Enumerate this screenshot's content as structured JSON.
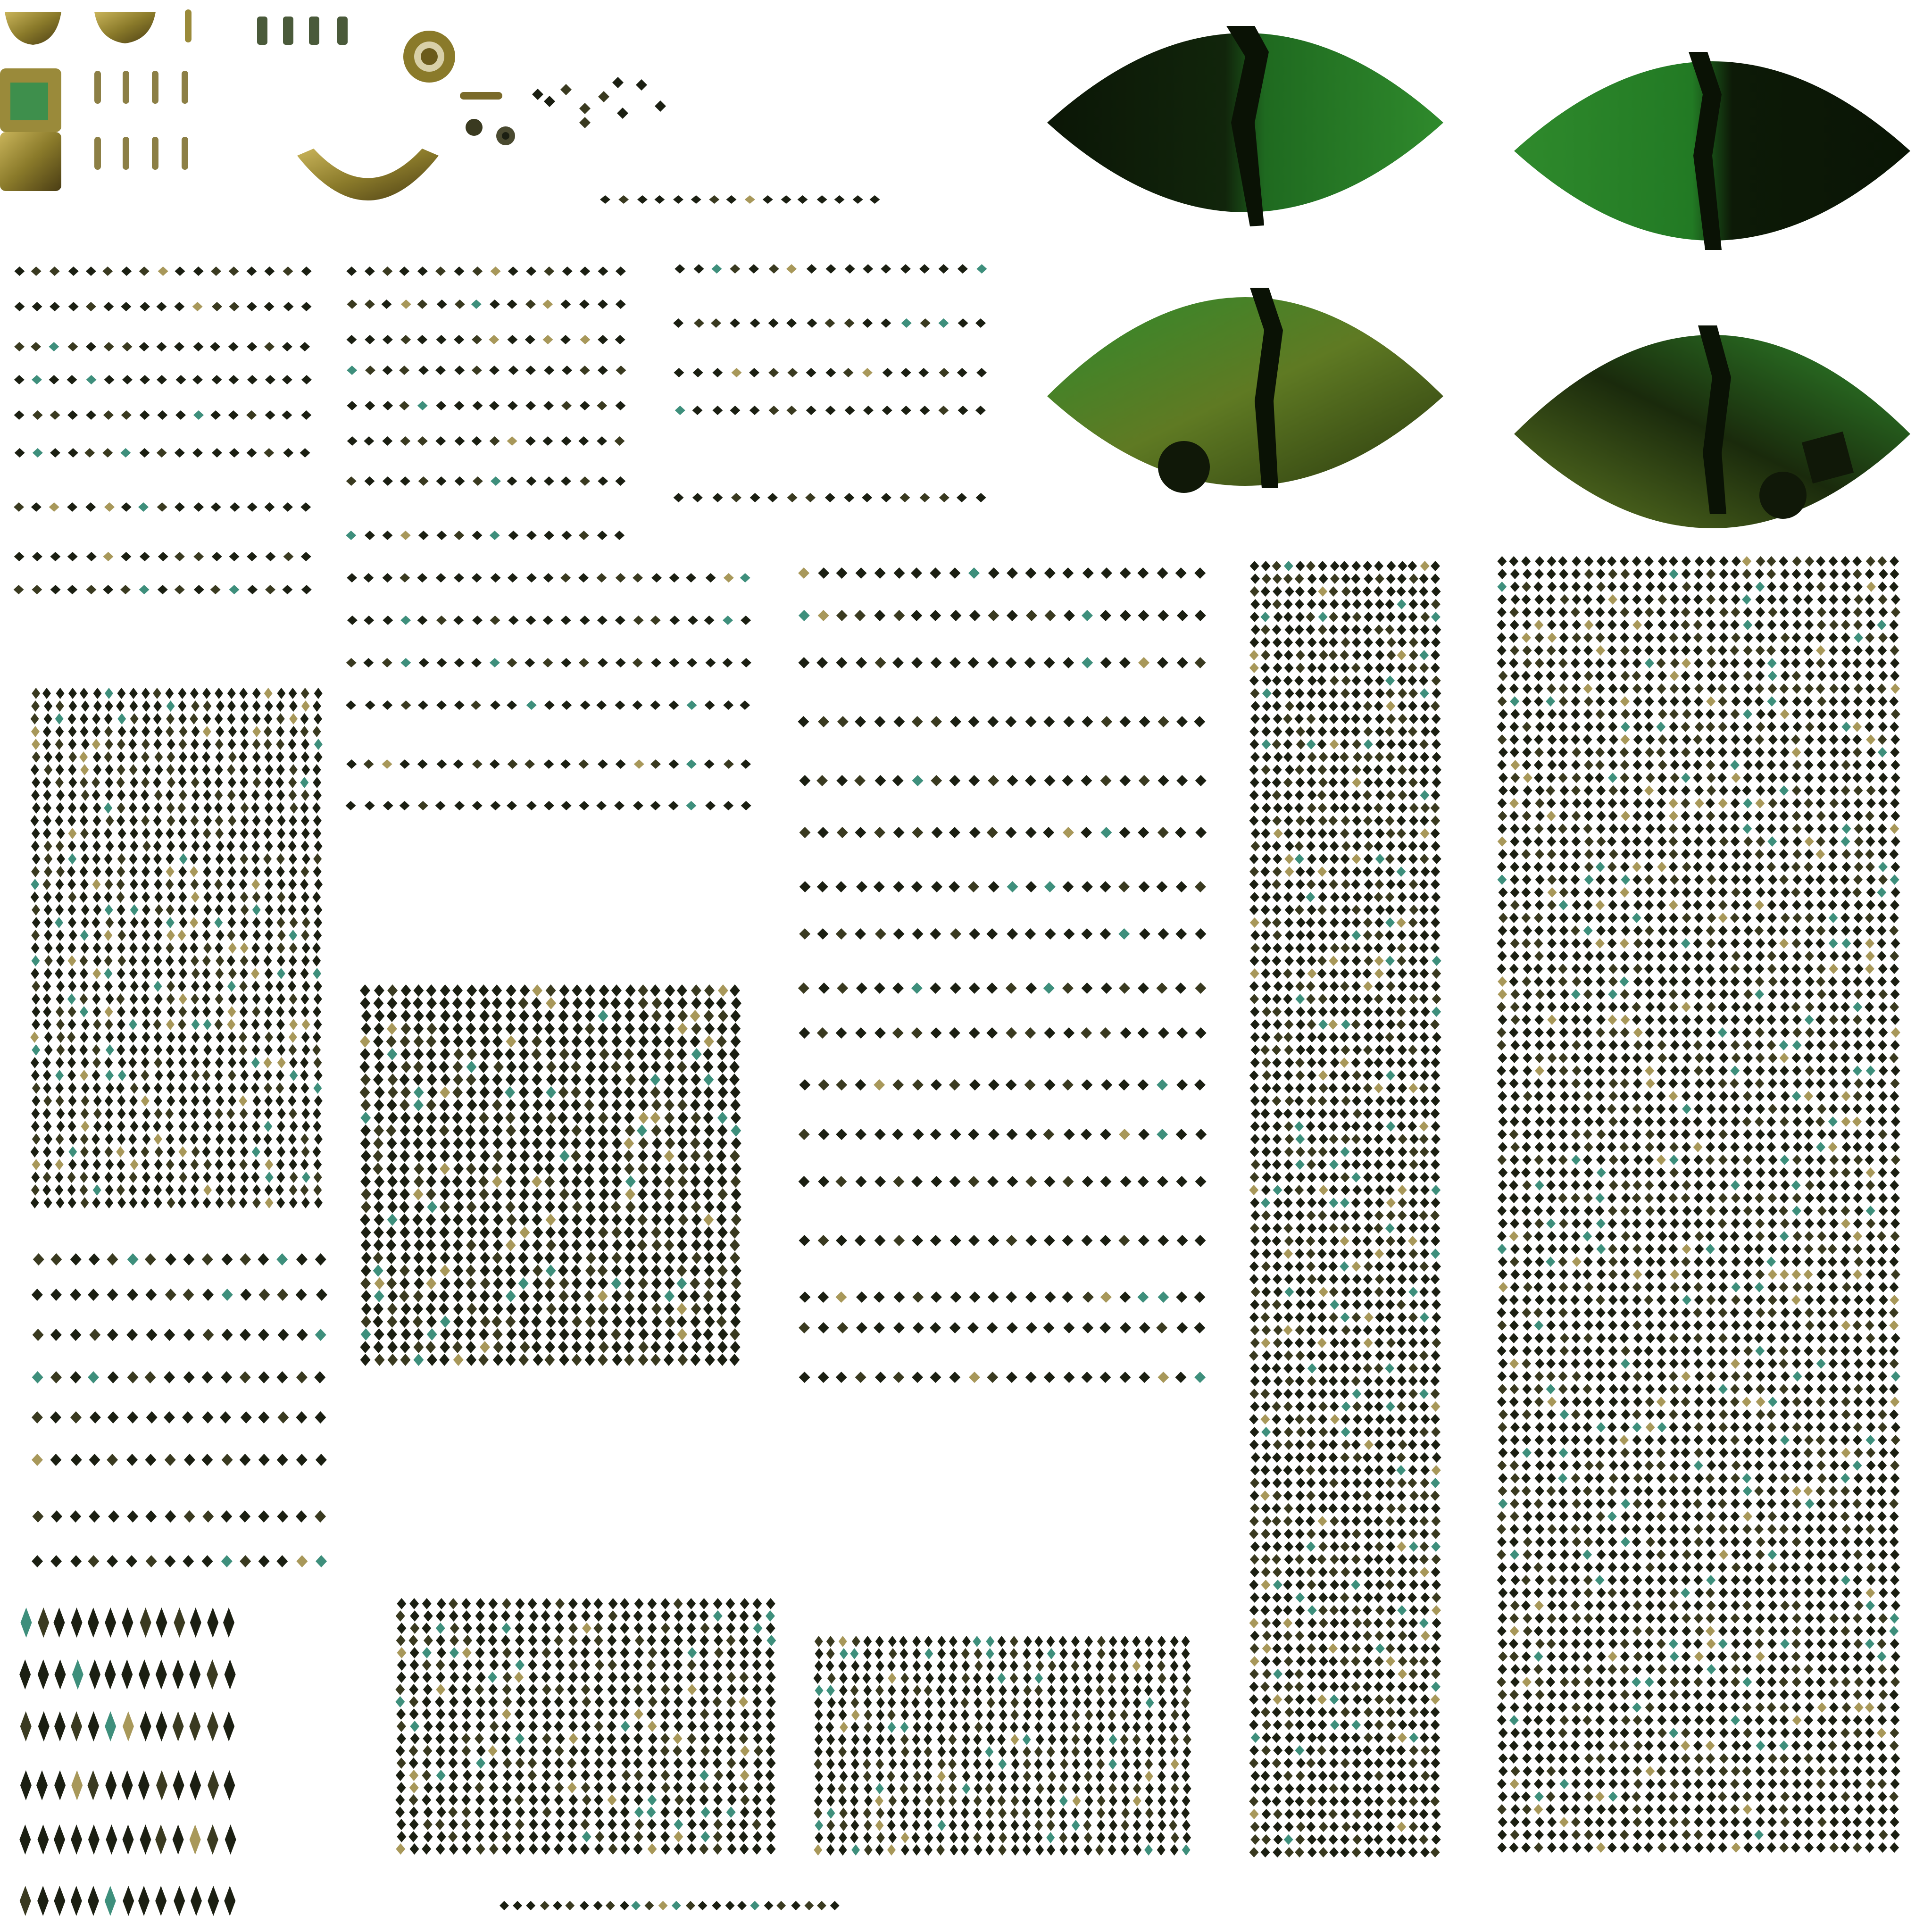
{
  "colors": {
    "background": "#ffffff",
    "diamond_dark": "#1b1f12",
    "diamond_mid": "#3a3a20",
    "accent_teal": "#3e8f7c",
    "accent_tan": "#a8985a",
    "eye_dark": "#0d1a07",
    "eye_green": "#2f8a2c",
    "eye_olive": "#5f7a23",
    "metal_gold": "#9a8a3a",
    "metal_shadow": "#4a3d14"
  },
  "icons": [
    "lens-shape-icon",
    "diamond-dot-icon",
    "ring-icon",
    "crescent-icon",
    "pin-icon"
  ]
}
